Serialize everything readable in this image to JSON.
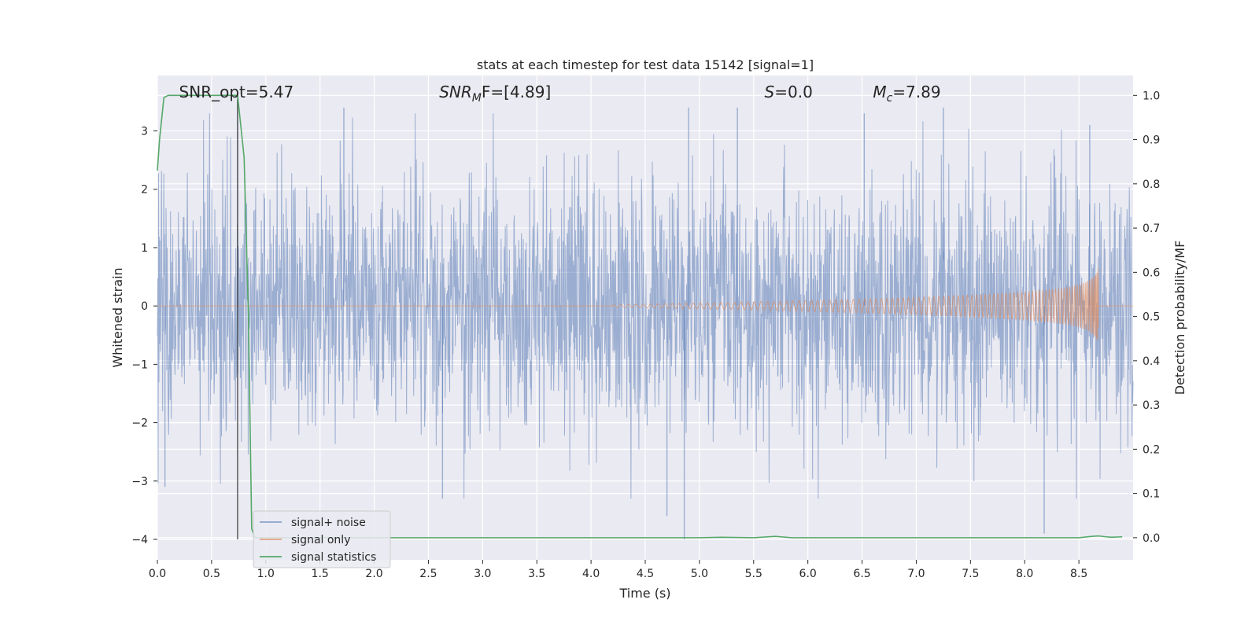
{
  "chart_data": {
    "type": "line",
    "title": "stats at each timestep for test data 15142 [signal=1]",
    "xlabel": "Time (s)",
    "ylabel": "Whitened strain",
    "ylabel_right": "Detection probability/MF",
    "xlim": [
      0.0,
      9.0
    ],
    "ylim": [
      -4.35,
      3.95
    ],
    "ylim_right": [
      -0.05,
      1.045
    ],
    "x_ticks": [
      0.0,
      0.5,
      1.0,
      1.5,
      2.0,
      2.5,
      3.0,
      3.5,
      4.0,
      4.5,
      5.0,
      5.5,
      6.0,
      6.5,
      7.0,
      7.5,
      8.0,
      8.5
    ],
    "x_tick_labels": [
      "0.0",
      "0.5",
      "1.0",
      "1.5",
      "2.0",
      "2.5",
      "3.0",
      "3.5",
      "4.0",
      "4.5",
      "5.0",
      "5.5",
      "6.0",
      "6.5",
      "7.0",
      "7.5",
      "8.0",
      "8.5"
    ],
    "y_ticks": [
      -4,
      -3,
      -2,
      -1,
      0,
      1,
      2,
      3
    ],
    "y_tick_labels": [
      "−4",
      "−3",
      "−2",
      "−1",
      "0",
      "1",
      "2",
      "3"
    ],
    "y_right_ticks": [
      0.0,
      0.1,
      0.2,
      0.3,
      0.4,
      0.5,
      0.6,
      0.7,
      0.8,
      0.9,
      1.0
    ],
    "y_right_tick_labels": [
      "0.0",
      "0.1",
      "0.2",
      "0.3",
      "0.4",
      "0.5",
      "0.6",
      "0.7",
      "0.8",
      "0.9",
      "1.0"
    ],
    "grid": true,
    "legend_position": "bottom-left",
    "vertical_marker_x": 0.74,
    "annotations": [
      {
        "main": "SNR_opt=5.47",
        "sub": "",
        "rest": "",
        "x": 0.2
      },
      {
        "main": "SNR",
        "sub": "M",
        "rest": "F=[4.89]",
        "x": 2.6,
        "italic": true
      },
      {
        "main": "S",
        "sub": "",
        "rest": "=0.0",
        "x": 5.6,
        "italic": true
      },
      {
        "main": "M",
        "sub": "c",
        "rest": "=7.89",
        "x": 6.6,
        "italic": true
      }
    ],
    "series": [
      {
        "name": "signal+ noise",
        "color": "#4c72b0",
        "axis": "left",
        "description": "whitened noise",
        "envelope_sigma": 1.15,
        "x_range": [
          0.0,
          9.0
        ],
        "peaks": [
          [
            0.07,
            -3.1
          ],
          [
            0.74,
            3.6
          ],
          [
            1.72,
            3.4
          ],
          [
            2.63,
            -3.3
          ],
          [
            4.7,
            -3.6
          ],
          [
            4.86,
            -4.0
          ],
          [
            4.9,
            3.4
          ],
          [
            5.35,
            3.4
          ],
          [
            6.52,
            3.3
          ],
          [
            7.25,
            3.4
          ],
          [
            8.18,
            -3.9
          ],
          [
            8.6,
            3.1
          ]
        ]
      },
      {
        "name": "signal only",
        "color": "#dd8452",
        "axis": "left",
        "chirp_start": 4.2,
        "chirp_end": 8.68,
        "chirp_amplitude_end": 0.68
      },
      {
        "name": "signal statistics",
        "color": "#55a868",
        "axis": "right",
        "x": [
          0.0,
          0.02,
          0.06,
          0.1,
          0.15,
          0.2,
          0.3,
          0.4,
          0.5,
          0.6,
          0.68,
          0.74,
          0.8,
          0.84,
          0.87,
          0.9,
          1.0,
          2.0,
          3.0,
          4.0,
          5.0,
          5.2,
          5.5,
          5.7,
          5.85,
          6.5,
          7.5,
          8.5,
          8.62,
          8.68,
          8.75,
          8.8,
          8.9
        ],
        "values": [
          0.83,
          0.9,
          0.995,
          1.0,
          1.0,
          1.0,
          1.0,
          1.0,
          1.0,
          1.0,
          1.0,
          1.0,
          0.86,
          0.5,
          0.02,
          0.0,
          0.0,
          0.0,
          0.0,
          0.0,
          0.0,
          0.001,
          0.0,
          0.003,
          0.0,
          0.0,
          0.0,
          0.0,
          0.003,
          0.004,
          0.002,
          0.001,
          0.002
        ]
      }
    ]
  }
}
